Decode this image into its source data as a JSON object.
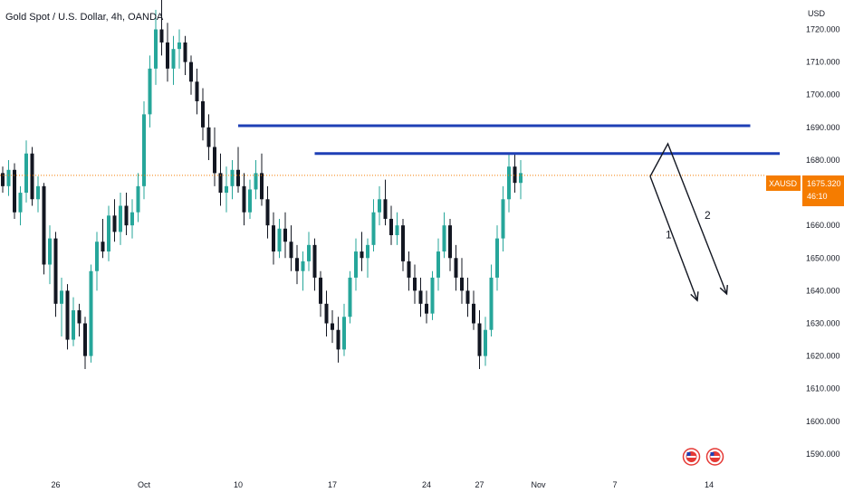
{
  "chart_data": {
    "type": "candlestick",
    "title": "Gold Spot / U.S. Dollar, 4h, OANDA",
    "currency_label": "USD",
    "symbol": "XAUSD",
    "last_price": "1675.320",
    "countdown": "46:10",
    "ylim": [
      1585,
      1729
    ],
    "yticks": [
      {
        "value": 1720,
        "label": "1720.000"
      },
      {
        "value": 1710,
        "label": "1710.000"
      },
      {
        "value": 1700,
        "label": "1700.000"
      },
      {
        "value": 1690,
        "label": "1690.000"
      },
      {
        "value": 1680,
        "label": "1680.000"
      },
      {
        "value": 1660,
        "label": "1660.000"
      },
      {
        "value": 1650,
        "label": "1650.000"
      },
      {
        "value": 1640,
        "label": "1640.000"
      },
      {
        "value": 1630,
        "label": "1630.000"
      },
      {
        "value": 1620,
        "label": "1620.000"
      },
      {
        "value": 1610,
        "label": "1610.000"
      },
      {
        "value": 1600,
        "label": "1600.000"
      },
      {
        "value": 1590,
        "label": "1590.000"
      }
    ],
    "xticks": [
      {
        "index": 9,
        "label": "26"
      },
      {
        "index": 24,
        "label": "Oct"
      },
      {
        "index": 40,
        "label": "10"
      },
      {
        "index": 56,
        "label": "17"
      },
      {
        "index": 72,
        "label": "24"
      },
      {
        "index": 81,
        "label": "27"
      },
      {
        "index": 91,
        "label": "Nov"
      },
      {
        "index": 104,
        "label": "7"
      },
      {
        "index": 120,
        "label": "14"
      }
    ],
    "candles": [
      [
        1676,
        1678,
        1670,
        1672
      ],
      [
        1672,
        1680,
        1669,
        1677
      ],
      [
        1677,
        1679,
        1662,
        1664
      ],
      [
        1664,
        1672,
        1660,
        1670
      ],
      [
        1670,
        1686,
        1667,
        1682
      ],
      [
        1682,
        1684,
        1666,
        1668
      ],
      [
        1668,
        1675,
        1664,
        1672
      ],
      [
        1672,
        1673,
        1645,
        1648
      ],
      [
        1648,
        1660,
        1642,
        1656
      ],
      [
        1656,
        1658,
        1632,
        1636
      ],
      [
        1636,
        1644,
        1626,
        1640
      ],
      [
        1640,
        1642,
        1622,
        1625
      ],
      [
        1625,
        1638,
        1623,
        1634
      ],
      [
        1634,
        1636,
        1626,
        1630
      ],
      [
        1630,
        1632,
        1616,
        1620
      ],
      [
        1620,
        1648,
        1618,
        1646
      ],
      [
        1646,
        1658,
        1640,
        1655
      ],
      [
        1655,
        1662,
        1650,
        1652
      ],
      [
        1652,
        1666,
        1649,
        1663
      ],
      [
        1663,
        1668,
        1655,
        1658
      ],
      [
        1658,
        1670,
        1654,
        1666
      ],
      [
        1666,
        1670,
        1657,
        1660
      ],
      [
        1660,
        1668,
        1656,
        1664
      ],
      [
        1664,
        1676,
        1661,
        1672
      ],
      [
        1672,
        1698,
        1668,
        1694
      ],
      [
        1694,
        1712,
        1690,
        1708
      ],
      [
        1708,
        1726,
        1703,
        1720
      ],
      [
        1720,
        1730,
        1712,
        1716
      ],
      [
        1716,
        1722,
        1704,
        1708
      ],
      [
        1708,
        1718,
        1703,
        1714
      ],
      [
        1714,
        1720,
        1708,
        1716
      ],
      [
        1716,
        1718,
        1706,
        1710
      ],
      [
        1710,
        1712,
        1700,
        1704
      ],
      [
        1704,
        1708,
        1694,
        1698
      ],
      [
        1698,
        1702,
        1686,
        1690
      ],
      [
        1690,
        1694,
        1680,
        1684
      ],
      [
        1684,
        1690,
        1672,
        1676
      ],
      [
        1676,
        1682,
        1666,
        1670
      ],
      [
        1670,
        1678,
        1664,
        1672
      ],
      [
        1672,
        1680,
        1668,
        1677
      ],
      [
        1677,
        1684,
        1670,
        1672
      ],
      [
        1672,
        1676,
        1660,
        1664
      ],
      [
        1664,
        1674,
        1662,
        1671
      ],
      [
        1671,
        1680,
        1668,
        1676
      ],
      [
        1676,
        1682,
        1666,
        1668
      ],
      [
        1668,
        1672,
        1656,
        1660
      ],
      [
        1660,
        1664,
        1648,
        1652
      ],
      [
        1652,
        1662,
        1650,
        1659
      ],
      [
        1659,
        1664,
        1650,
        1655
      ],
      [
        1655,
        1660,
        1646,
        1650
      ],
      [
        1650,
        1654,
        1642,
        1646
      ],
      [
        1646,
        1652,
        1640,
        1649
      ],
      [
        1649,
        1658,
        1646,
        1654
      ],
      [
        1654,
        1656,
        1640,
        1644
      ],
      [
        1644,
        1646,
        1632,
        1636
      ],
      [
        1636,
        1640,
        1626,
        1630
      ],
      [
        1630,
        1634,
        1624,
        1628
      ],
      [
        1628,
        1632,
        1618,
        1622
      ],
      [
        1622,
        1636,
        1620,
        1632
      ],
      [
        1632,
        1646,
        1630,
        1644
      ],
      [
        1644,
        1656,
        1640,
        1652
      ],
      [
        1652,
        1658,
        1646,
        1650
      ],
      [
        1650,
        1656,
        1644,
        1654
      ],
      [
        1654,
        1668,
        1652,
        1664
      ],
      [
        1664,
        1672,
        1660,
        1668
      ],
      [
        1668,
        1674,
        1660,
        1662
      ],
      [
        1662,
        1666,
        1654,
        1657
      ],
      [
        1657,
        1664,
        1654,
        1660
      ],
      [
        1660,
        1662,
        1646,
        1649
      ],
      [
        1649,
        1652,
        1640,
        1644
      ],
      [
        1644,
        1648,
        1636,
        1640
      ],
      [
        1640,
        1644,
        1632,
        1636
      ],
      [
        1636,
        1640,
        1630,
        1633
      ],
      [
        1633,
        1646,
        1631,
        1644
      ],
      [
        1644,
        1656,
        1640,
        1652
      ],
      [
        1652,
        1664,
        1650,
        1660
      ],
      [
        1660,
        1662,
        1646,
        1650
      ],
      [
        1650,
        1654,
        1640,
        1644
      ],
      [
        1644,
        1650,
        1636,
        1640
      ],
      [
        1640,
        1644,
        1632,
        1636
      ],
      [
        1636,
        1640,
        1628,
        1630
      ],
      [
        1630,
        1634,
        1616,
        1620
      ],
      [
        1620,
        1632,
        1617,
        1628
      ],
      [
        1628,
        1648,
        1626,
        1644
      ],
      [
        1644,
        1660,
        1640,
        1656
      ],
      [
        1656,
        1672,
        1652,
        1668
      ],
      [
        1668,
        1682,
        1664,
        1678
      ],
      [
        1678,
        1682,
        1670,
        1673
      ],
      [
        1673,
        1680,
        1668,
        1676
      ]
    ],
    "horizontal_lines": [
      {
        "value": 1690.5,
        "from_index": 40,
        "to_index": 127,
        "color": "#1e3fb5"
      },
      {
        "value": 1682,
        "from_index": 53,
        "to_index": 132,
        "color": "#1e3fb5"
      }
    ],
    "price_line": {
      "value": 1675.32,
      "color": "#f57c00"
    },
    "projection_arrows": [
      {
        "label": "1",
        "points": [
          [
            110,
            1675
          ],
          [
            118,
            1637
          ]
        ]
      },
      {
        "label": "2",
        "points": [
          [
            110,
            1675
          ],
          [
            113,
            1685
          ],
          [
            123,
            1639
          ]
        ]
      }
    ],
    "colors": {
      "up": "#26a69a",
      "down": "#131722",
      "level_line": "#1e3fb5",
      "accent": "#f57c00",
      "event_icon": "#e53935"
    },
    "event_icons": [
      {
        "index": 117,
        "name": "us-flag-icon"
      },
      {
        "index": 121,
        "name": "us-flag-icon"
      }
    ]
  }
}
